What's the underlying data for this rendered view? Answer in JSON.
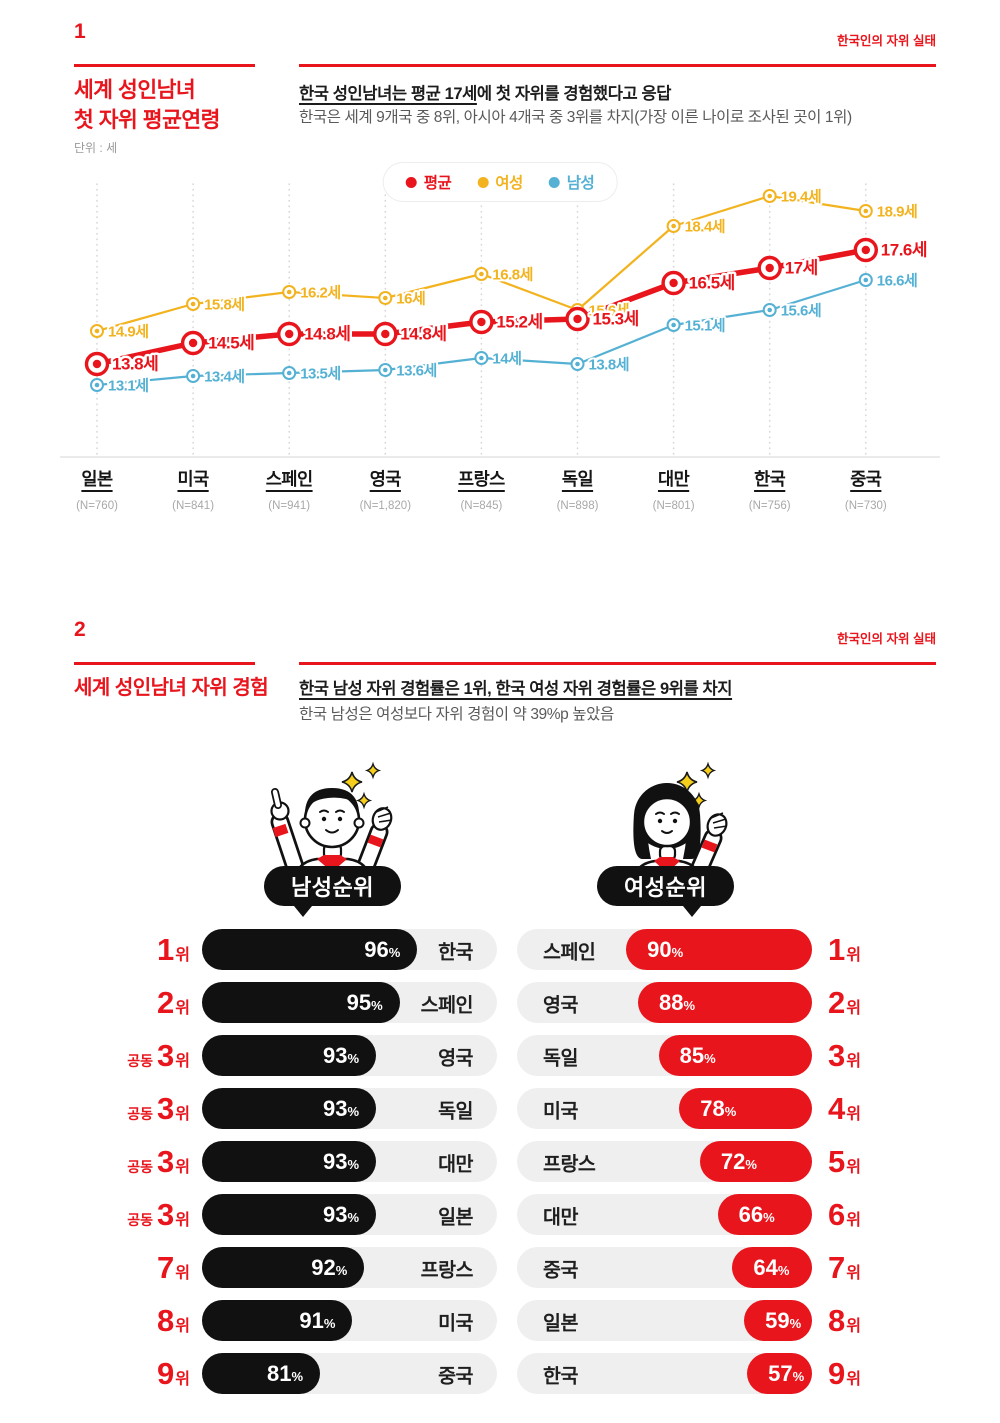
{
  "accent": "#e8151c",
  "section1": {
    "number": "1",
    "corner": "한국인의 자위 실태",
    "title_line1": "세계 성인남녀",
    "title_line2": "첫 자위 평균연령",
    "unit": "단위 : 세",
    "headline_underlined": "한국 성인남녀는 평균 17세",
    "headline_rest": "에 첫 자위를 경험했다고 응답",
    "subline": "한국은 세계 9개국 중 8위, 아시아 4개국 중 3위를 차지(가장 이른 나이로 조사된 곳이 1위)"
  },
  "section2": {
    "number": "2",
    "corner": "한국인의 자위 실태",
    "title": "세계 성인남녀 자위 경험",
    "headline": "한국 남성 자위 경험률은 1위, 한국 여성 자위 경험률은 9위를 차지",
    "subline": "한국 남성은 여성보다 자위 경험이 약 39%p 높았음"
  },
  "chart_data": [
    {
      "id": "first-masturbation-age-line",
      "type": "line",
      "categories": [
        "일본",
        "미국",
        "스페인",
        "영국",
        "프랑스",
        "독일",
        "대만",
        "한국",
        "중국"
      ],
      "sample_sizes": [
        "(N=760)",
        "(N=841)",
        "(N=941)",
        "(N=1,820)",
        "(N=845)",
        "(N=898)",
        "(N=801)",
        "(N=756)",
        "(N=730)"
      ],
      "series": [
        {
          "name": "평균",
          "color": "#e8151c",
          "values": [
            13.8,
            14.5,
            14.8,
            14.8,
            15.2,
            15.3,
            16.5,
            17,
            17.6
          ],
          "labels": [
            "13.8세",
            "14.5세",
            "14.8세",
            "14.8세",
            "15.2세",
            "15.3세",
            "16.5세",
            "17세",
            "17.6세"
          ]
        },
        {
          "name": "여성",
          "color": "#f2b31f",
          "values": [
            14.9,
            15.8,
            16.2,
            16,
            16.8,
            15.6,
            18.4,
            19.4,
            18.9
          ],
          "labels": [
            "14.9세",
            "15.8세",
            "16.2세",
            "16세",
            "16.8세",
            "15.6세",
            "18.4세",
            "19.4세",
            "18.9세"
          ]
        },
        {
          "name": "남성",
          "color": "#55b1d4",
          "values": [
            13.1,
            13.4,
            13.5,
            13.6,
            14,
            13.8,
            15.1,
            15.6,
            16.6
          ],
          "labels": [
            "13.1세",
            "13.4세",
            "13.5세",
            "13.6세",
            "14세",
            "13.8세",
            "15.1세",
            "15.6세",
            "16.6세"
          ]
        }
      ],
      "ylim": [
        11,
        20
      ],
      "grid": "vertical-dotted",
      "legend_position": "top-center"
    },
    {
      "id": "male-experience-ranking",
      "type": "bar",
      "badge": "남성순위",
      "bar_color": "#111111",
      "tied_label": "공동",
      "unit": "%",
      "rows": [
        {
          "rank": "1",
          "tied": false,
          "value": 96,
          "country": "한국",
          "bar_frac": 0.73
        },
        {
          "rank": "2",
          "tied": false,
          "value": 95,
          "country": "스페인",
          "bar_frac": 0.67
        },
        {
          "rank": "3",
          "tied": true,
          "value": 93,
          "country": "영국",
          "bar_frac": 0.59
        },
        {
          "rank": "3",
          "tied": true,
          "value": 93,
          "country": "독일",
          "bar_frac": 0.59
        },
        {
          "rank": "3",
          "tied": true,
          "value": 93,
          "country": "대만",
          "bar_frac": 0.59
        },
        {
          "rank": "3",
          "tied": true,
          "value": 93,
          "country": "일본",
          "bar_frac": 0.59
        },
        {
          "rank": "7",
          "tied": false,
          "value": 92,
          "country": "프랑스",
          "bar_frac": 0.55
        },
        {
          "rank": "8",
          "tied": false,
          "value": 91,
          "country": "미국",
          "bar_frac": 0.51
        },
        {
          "rank": "9",
          "tied": false,
          "value": 81,
          "country": "중국",
          "bar_frac": 0.4
        }
      ]
    },
    {
      "id": "female-experience-ranking",
      "type": "bar",
      "badge": "여성순위",
      "bar_color": "#e8151c",
      "tied_label": "공동",
      "unit": "%",
      "rows": [
        {
          "rank": "1",
          "tied": false,
          "value": 90,
          "country": "스페인",
          "bar_frac": 0.63
        },
        {
          "rank": "2",
          "tied": false,
          "value": 88,
          "country": "영국",
          "bar_frac": 0.59
        },
        {
          "rank": "3",
          "tied": false,
          "value": 85,
          "country": "독일",
          "bar_frac": 0.52
        },
        {
          "rank": "4",
          "tied": false,
          "value": 78,
          "country": "미국",
          "bar_frac": 0.45
        },
        {
          "rank": "5",
          "tied": false,
          "value": 72,
          "country": "프랑스",
          "bar_frac": 0.38
        },
        {
          "rank": "6",
          "tied": false,
          "value": 66,
          "country": "대만",
          "bar_frac": 0.32
        },
        {
          "rank": "7",
          "tied": false,
          "value": 64,
          "country": "중국",
          "bar_frac": 0.27
        },
        {
          "rank": "8",
          "tied": false,
          "value": 59,
          "country": "일본",
          "bar_frac": 0.23
        },
        {
          "rank": "9",
          "tied": false,
          "value": 57,
          "country": "한국",
          "bar_frac": 0.22
        }
      ]
    }
  ]
}
